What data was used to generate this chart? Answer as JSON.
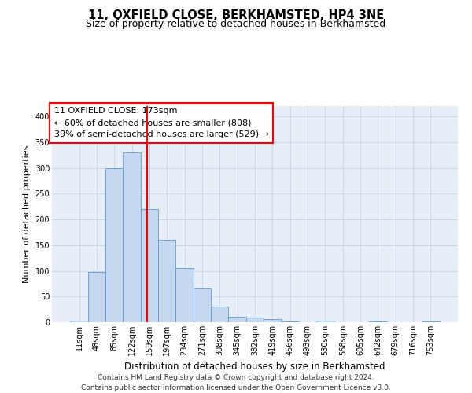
{
  "title_line1": "11, OXFIELD CLOSE, BERKHAMSTED, HP4 3NE",
  "title_line2": "Size of property relative to detached houses in Berkhamsted",
  "xlabel": "Distribution of detached houses by size in Berkhamsted",
  "ylabel": "Number of detached properties",
  "footer_line1": "Contains HM Land Registry data © Crown copyright and database right 2024.",
  "footer_line2": "Contains public sector information licensed under the Open Government Licence v3.0.",
  "bin_labels": [
    "11sqm",
    "48sqm",
    "85sqm",
    "122sqm",
    "159sqm",
    "197sqm",
    "234sqm",
    "271sqm",
    "308sqm",
    "345sqm",
    "382sqm",
    "419sqm",
    "456sqm",
    "493sqm",
    "530sqm",
    "568sqm",
    "605sqm",
    "642sqm",
    "679sqm",
    "716sqm",
    "753sqm"
  ],
  "bar_values": [
    3,
    98,
    299,
    330,
    220,
    160,
    105,
    65,
    30,
    10,
    9,
    6,
    2,
    0,
    3,
    0,
    0,
    2,
    0,
    0,
    2
  ],
  "bar_color": "#c5d8f0",
  "bar_edge_color": "#5a9bd5",
  "vline_color": "red",
  "annotation_text": "11 OXFIELD CLOSE: 173sqm\n← 60% of detached houses are smaller (808)\n39% of semi-detached houses are larger (529) →",
  "annotation_box_color": "white",
  "annotation_box_edge": "red",
  "ylim": [
    0,
    420
  ],
  "yticks": [
    0,
    50,
    100,
    150,
    200,
    250,
    300,
    350,
    400
  ],
  "grid_color": "#c8d4e8",
  "background_color": "#e8eef8",
  "title_fontsize": 10.5,
  "subtitle_fontsize": 9,
  "axis_label_fontsize": 8.5,
  "tick_fontsize": 7,
  "annotation_fontsize": 8,
  "footer_fontsize": 6.5,
  "ylabel_fontsize": 8
}
